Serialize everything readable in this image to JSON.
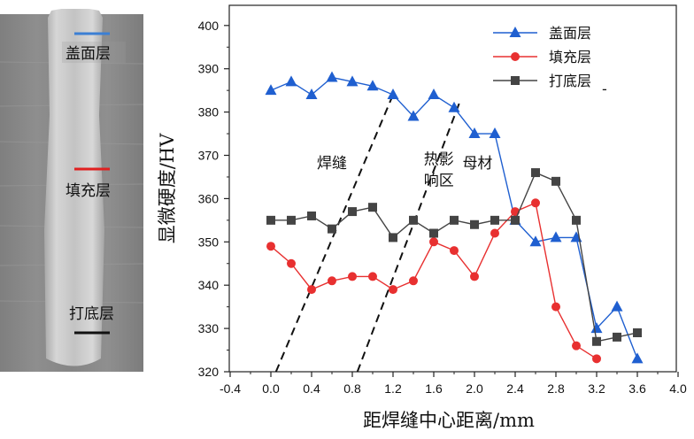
{
  "macrograph": {
    "labels": [
      {
        "text": "盖面层",
        "color": "#3b7fd4"
      },
      {
        "text": "填充层",
        "color": "#e02020"
      },
      {
        "text": "打底层",
        "color": "#111111"
      }
    ]
  },
  "chart_data": {
    "type": "line",
    "xlabel": "距焊缝中心距离/mm",
    "ylabel": "显微硬度/HV",
    "xlim": [
      -0.4,
      4.0
    ],
    "ylim": [
      320,
      405
    ],
    "xticks": [
      "-0.4",
      "0.0",
      "0.4",
      "0.8",
      "1.2",
      "1.6",
      "2.0",
      "2.4",
      "2.8",
      "3.2",
      "3.6",
      "4.0"
    ],
    "xtick_values": [
      -0.4,
      0.0,
      0.4,
      0.8,
      1.2,
      1.6,
      2.0,
      2.4,
      2.8,
      3.2,
      3.6,
      4.0
    ],
    "yticks": [
      "320",
      "330",
      "340",
      "350",
      "360",
      "370",
      "380",
      "390",
      "400"
    ],
    "ytick_values": [
      320,
      330,
      340,
      350,
      360,
      370,
      380,
      390,
      400
    ],
    "grid": false,
    "legend_position": "top-right",
    "series": [
      {
        "name": "盖面层",
        "color": "#1f5fd0",
        "marker": "triangle",
        "x": [
          0.0,
          0.2,
          0.4,
          0.6,
          0.8,
          1.0,
          1.2,
          1.4,
          1.6,
          1.8,
          2.0,
          2.2,
          2.4,
          2.6,
          2.8,
          3.0,
          3.2,
          3.4,
          3.6
        ],
        "y": [
          385,
          387,
          384,
          388,
          387,
          386,
          384,
          379,
          384,
          381,
          375,
          375,
          355,
          350,
          351,
          351,
          330,
          335,
          323
        ]
      },
      {
        "name": "填充层",
        "color": "#e83030",
        "marker": "circle",
        "x": [
          0.0,
          0.2,
          0.4,
          0.6,
          0.8,
          1.0,
          1.2,
          1.4,
          1.6,
          1.8,
          2.0,
          2.2,
          2.4,
          2.6,
          2.8,
          3.0,
          3.2
        ],
        "y": [
          349,
          345,
          339,
          341,
          342,
          342,
          339,
          341,
          350,
          348,
          342,
          352,
          357,
          359,
          335,
          326,
          323
        ]
      },
      {
        "name": "打底层",
        "color": "#444444",
        "marker": "square",
        "x": [
          0.0,
          0.2,
          0.4,
          0.6,
          0.8,
          1.0,
          1.2,
          1.4,
          1.6,
          1.8,
          2.0,
          2.2,
          2.4,
          2.6,
          2.8,
          3.0,
          3.2,
          3.4,
          3.6
        ],
        "y": [
          355,
          355,
          356,
          353,
          357,
          358,
          351,
          355,
          352,
          355,
          354,
          355,
          355,
          366,
          364,
          355,
          327,
          328,
          329
        ]
      }
    ],
    "boundaries": [
      {
        "x": [
          0.05,
          1.2
        ],
        "y": [
          320,
          384
        ]
      },
      {
        "x": [
          0.85,
          1.85
        ],
        "y": [
          320,
          382
        ]
      }
    ],
    "zones": [
      {
        "lines": [
          "焊缝"
        ],
        "x": 0.6,
        "y": 367
      },
      {
        "lines": [
          "热影",
          "响区"
        ],
        "x": 1.65,
        "y": 368
      },
      {
        "lines": [
          "母材"
        ],
        "x": 2.03,
        "y": 367
      }
    ],
    "legend_stray_mark": "-"
  }
}
